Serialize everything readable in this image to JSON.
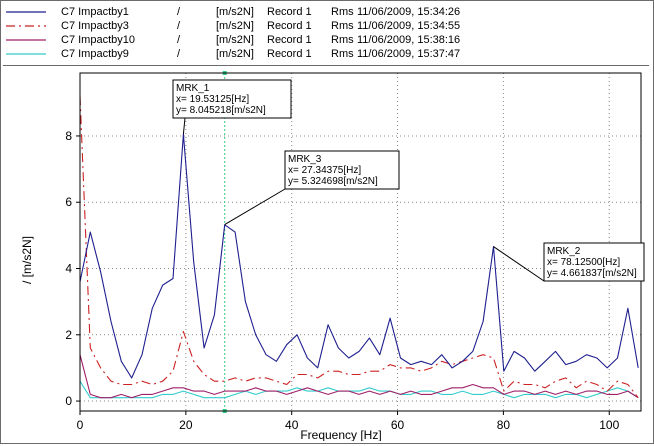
{
  "legend": {
    "items": [
      {
        "name": "C7 Impactby1",
        "unit": "/",
        "scale": "[m/s2N]",
        "record": "Record 1",
        "rms": "Rms",
        "timestamp": "11/06/2009, 15:34:26",
        "color": "#1f1f8f",
        "dash": "solid"
      },
      {
        "name": "C7 Impactby3",
        "unit": "/",
        "scale": "[m/s2N]",
        "record": "Record 1",
        "rms": "Rms",
        "timestamp": "11/06/2009, 15:34:55",
        "color": "#cc2222",
        "dash": "dashed"
      },
      {
        "name": "C7 Impactby10",
        "unit": "/",
        "scale": "[m/s2N]",
        "record": "Record 1",
        "rms": "Rms",
        "timestamp": "11/06/2009, 15:38:16",
        "color": "#a0206a",
        "dash": "solid"
      },
      {
        "name": "C7 Impactby9",
        "unit": "/",
        "scale": "[m/s2N]",
        "record": "Record 1",
        "rms": "Rms",
        "timestamp": "11/06/2009, 15:37:47",
        "color": "#33cccc",
        "dash": "solid"
      }
    ]
  },
  "chart_data": {
    "type": "line",
    "xlabel": "Frequency [Hz]",
    "ylabel": "/ [m/s2N]",
    "xlim": [
      0,
      106
    ],
    "ylim": [
      -0.3,
      9.9
    ],
    "xticks": [
      0,
      20,
      40,
      60,
      80,
      100
    ],
    "yticks": [
      0,
      2,
      4,
      6,
      8
    ],
    "grid": true,
    "cursor_x": 27.34375,
    "series": [
      {
        "name": "C7 Impactby1",
        "color": "#1f1f8f",
        "dash": "solid",
        "x": [
          0,
          1.95,
          3.9,
          5.86,
          7.81,
          9.77,
          11.72,
          13.67,
          15.63,
          17.58,
          19.53,
          21.48,
          23.44,
          25.39,
          27.34,
          29.3,
          31.25,
          33.2,
          35.16,
          37.11,
          39.06,
          41.02,
          42.97,
          44.92,
          46.88,
          48.83,
          50.78,
          52.73,
          54.69,
          56.64,
          58.59,
          60.55,
          62.5,
          64.45,
          66.41,
          68.36,
          70.31,
          72.27,
          74.22,
          76.17,
          78.13,
          80.08,
          82.03,
          83.98,
          85.94,
          87.89,
          89.84,
          91.8,
          93.75,
          95.7,
          97.66,
          99.61,
          101.56,
          103.52,
          105.47
        ],
        "y": [
          3.6,
          5.1,
          3.9,
          2.4,
          1.2,
          0.7,
          1.4,
          2.8,
          3.5,
          3.7,
          8.05,
          4.2,
          1.6,
          2.6,
          5.32,
          5.1,
          3.0,
          2.0,
          1.4,
          1.2,
          1.7,
          2.0,
          1.3,
          1.0,
          2.3,
          1.6,
          1.3,
          1.5,
          1.9,
          1.4,
          2.5,
          1.3,
          1.1,
          1.2,
          1.1,
          1.4,
          1.0,
          1.2,
          1.5,
          2.4,
          4.66,
          0.9,
          1.5,
          1.3,
          0.9,
          1.2,
          1.5,
          1.1,
          1.2,
          1.4,
          1.3,
          1.0,
          1.3,
          2.8,
          1.0
        ]
      },
      {
        "name": "C7 Impactby3",
        "color": "#cc2222",
        "dash": "dashed",
        "x": [
          0,
          1.95,
          3.9,
          5.86,
          7.81,
          9.77,
          11.72,
          13.67,
          15.63,
          17.58,
          19.53,
          21.48,
          23.44,
          25.39,
          27.34,
          29.3,
          31.25,
          33.2,
          35.16,
          37.11,
          39.06,
          41.02,
          42.97,
          44.92,
          46.88,
          48.83,
          50.78,
          52.73,
          54.69,
          56.64,
          58.59,
          60.55,
          62.5,
          64.45,
          66.41,
          68.36,
          70.31,
          72.27,
          74.22,
          76.17,
          78.13,
          80.08,
          82.03,
          83.98,
          85.94,
          87.89,
          89.84,
          91.8,
          93.75,
          95.7,
          97.66,
          99.61,
          101.56,
          103.52,
          105.47
        ],
        "y": [
          9.2,
          1.6,
          1.0,
          0.6,
          0.5,
          0.5,
          0.6,
          0.5,
          0.6,
          0.9,
          2.1,
          1.2,
          0.8,
          0.6,
          0.6,
          0.7,
          0.6,
          0.7,
          0.7,
          0.6,
          0.5,
          0.8,
          0.8,
          0.7,
          0.9,
          0.9,
          0.8,
          0.8,
          0.9,
          0.9,
          1.1,
          1.0,
          1.0,
          0.9,
          1.0,
          1.2,
          1.1,
          1.2,
          1.3,
          1.4,
          1.3,
          0.3,
          0.6,
          0.5,
          0.5,
          0.4,
          0.6,
          0.7,
          0.4,
          0.6,
          0.5,
          0.3,
          0.6,
          0.5,
          0.1
        ]
      },
      {
        "name": "C7 Impactby10",
        "color": "#a0206a",
        "dash": "solid",
        "x": [
          0,
          1.95,
          3.9,
          5.86,
          7.81,
          9.77,
          11.72,
          13.67,
          15.63,
          17.58,
          19.53,
          21.48,
          23.44,
          25.39,
          27.34,
          29.3,
          31.25,
          33.2,
          35.16,
          37.11,
          39.06,
          41.02,
          42.97,
          44.92,
          46.88,
          48.83,
          50.78,
          52.73,
          54.69,
          56.64,
          58.59,
          60.55,
          62.5,
          64.45,
          66.41,
          68.36,
          70.31,
          72.27,
          74.22,
          76.17,
          78.13,
          80.08,
          82.03,
          83.98,
          85.94,
          87.89,
          89.84,
          91.8,
          93.75,
          95.7,
          97.66,
          99.61,
          101.56,
          103.52,
          105.47
        ],
        "y": [
          1.4,
          0.2,
          0.1,
          0.1,
          0.2,
          0.1,
          0.2,
          0.2,
          0.3,
          0.4,
          0.4,
          0.3,
          0.3,
          0.2,
          0.3,
          0.3,
          0.3,
          0.4,
          0.3,
          0.3,
          0.2,
          0.3,
          0.4,
          0.3,
          0.2,
          0.3,
          0.3,
          0.2,
          0.3,
          0.2,
          0.3,
          0.2,
          0.3,
          0.2,
          0.2,
          0.3,
          0.4,
          0.4,
          0.5,
          0.4,
          0.4,
          0.2,
          0.3,
          0.3,
          0.2,
          0.3,
          0.2,
          0.3,
          0.2,
          0.3,
          0.3,
          0.2,
          0.2,
          0.3,
          0.1
        ]
      },
      {
        "name": "C7 Impactby9",
        "color": "#33cccc",
        "dash": "solid",
        "x": [
          0,
          1.95,
          3.9,
          5.86,
          7.81,
          9.77,
          11.72,
          13.67,
          15.63,
          17.58,
          19.53,
          21.48,
          23.44,
          25.39,
          27.34,
          29.3,
          31.25,
          33.2,
          35.16,
          37.11,
          39.06,
          41.02,
          42.97,
          44.92,
          46.88,
          48.83,
          50.78,
          52.73,
          54.69,
          56.64,
          58.59,
          60.55,
          62.5,
          64.45,
          66.41,
          68.36,
          70.31,
          72.27,
          74.22,
          76.17,
          78.13,
          80.08,
          82.03,
          83.98,
          85.94,
          87.89,
          89.84,
          91.8,
          93.75,
          95.7,
          97.66,
          99.61,
          101.56,
          103.52,
          105.47
        ],
        "y": [
          0.6,
          0.1,
          0.1,
          0.1,
          0.1,
          0.1,
          0.1,
          0.1,
          0.2,
          0.2,
          0.3,
          0.2,
          0.1,
          0.1,
          0.1,
          0.2,
          0.3,
          0.2,
          0.3,
          0.3,
          0.3,
          0.4,
          0.3,
          0.3,
          0.4,
          0.3,
          0.3,
          0.3,
          0.4,
          0.3,
          0.3,
          0.2,
          0.2,
          0.3,
          0.3,
          0.2,
          0.2,
          0.3,
          0.2,
          0.2,
          0.3,
          0.2,
          0.1,
          0.2,
          0.2,
          0.2,
          0.1,
          0.2,
          0.2,
          0.1,
          0.2,
          0.3,
          0.4,
          0.3,
          0.1
        ]
      }
    ],
    "markers": [
      {
        "id": "MRK_1",
        "line1": "MRK_1",
        "line2": "x= 19.53125[Hz]",
        "line3": "y= 8.045218[m/s2N]",
        "x": 19.53125,
        "y": 8.045218
      },
      {
        "id": "MRK_3",
        "line1": "MRK_3",
        "line2": "x= 27.34375[Hz]",
        "line3": "y= 5.324698[m/s2N]",
        "x": 27.34375,
        "y": 5.324698
      },
      {
        "id": "MRK_2",
        "line1": "MRK_2",
        "line2": "x= 78.12500[Hz]",
        "line3": "y= 4.661837[m/s2N]",
        "x": 78.125,
        "y": 4.661837
      }
    ]
  }
}
